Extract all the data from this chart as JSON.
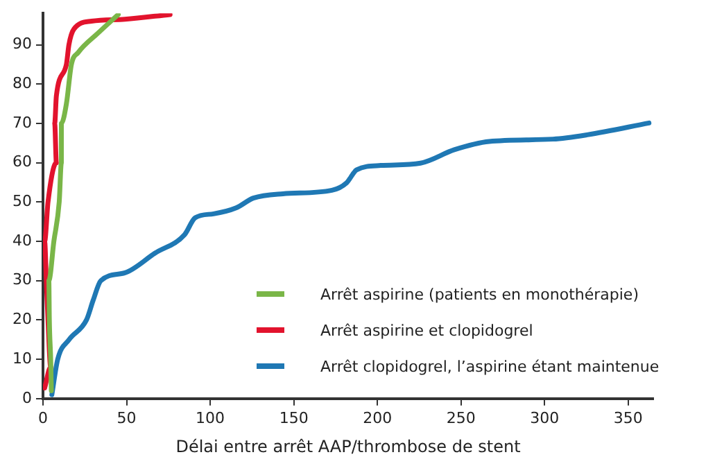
{
  "chart_data": {
    "type": "line",
    "xlabel": "Délai entre arrêt AAP/thrombose de stent",
    "xlim": [
      0,
      365
    ],
    "xticks": [
      0,
      50,
      100,
      150,
      200,
      250,
      300,
      350
    ],
    "ylim": [
      0,
      98
    ],
    "yticks": [
      0,
      10,
      20,
      30,
      40,
      50,
      60,
      70,
      80,
      90
    ],
    "grid": false,
    "legend": "bottom right",
    "marker": "none",
    "line_style": "solid",
    "series": [
      {
        "name": "Arrêt aspirine (patients en monothérapie)",
        "color": "#7ab648",
        "x": [
          5,
          4.6,
          3.8,
          3.5,
          6.5,
          9.7,
          11,
          11,
          14,
          17,
          21,
          33,
          45
        ],
        "values": [
          2,
          10,
          20,
          30,
          40,
          50,
          60,
          70,
          75,
          85,
          88,
          93,
          97.7
        ]
      },
      {
        "name": "Arrêt aspirine et clopidogrel",
        "color": "#e2132d",
        "x": [
          1,
          4.6,
          3,
          2,
          1,
          3,
          8,
          7,
          8,
          14,
          15.5,
          18.5,
          29,
          49,
          76
        ],
        "values": [
          2.7,
          8,
          20,
          30,
          40,
          50,
          60,
          70,
          77,
          85,
          90,
          94,
          96,
          96.5,
          97.7
        ]
      },
      {
        "name": "Arrêt clopidogrel, l’aspirine étant maintenue",
        "color": "#1f78b4",
        "x": [
          5.3,
          8.8,
          15.6,
          26,
          30,
          34.6,
          49,
          67,
          84.7,
          91,
          102,
          115.5,
          125.8,
          143.5,
          172.8,
          181.6,
          187.6,
          202,
          225.8,
          246,
          266.9,
          305,
          325.5,
          362.4
        ],
        "values": [
          1,
          10,
          15,
          20,
          25,
          30,
          32,
          37,
          41.7,
          46,
          47,
          48.5,
          51,
          52.1,
          53,
          54.9,
          58.2,
          59.3,
          59.9,
          63.3,
          65.4,
          66,
          67.1,
          70.1
        ]
      }
    ]
  }
}
